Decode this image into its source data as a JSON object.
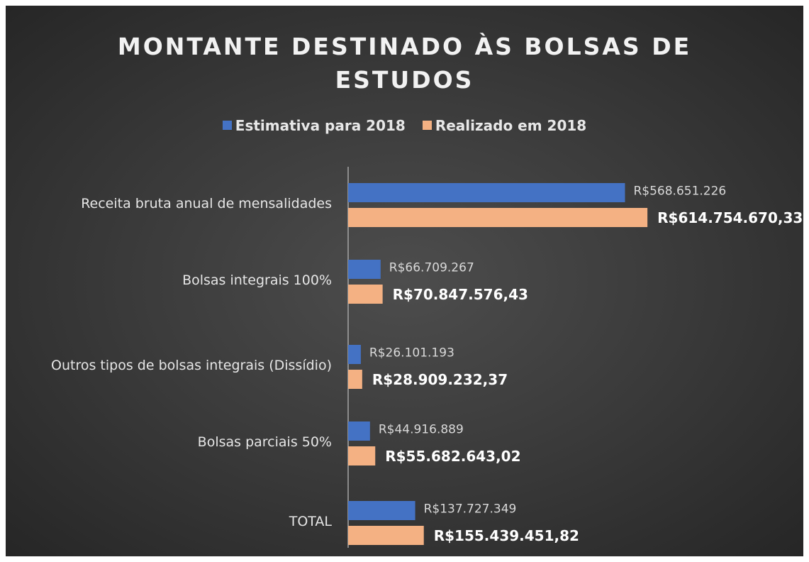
{
  "chart_data": {
    "type": "bar",
    "orientation": "horizontal",
    "title": "MONTANTE DESTINADO ÀS BOLSAS DE ESTUDOS",
    "categories": [
      "Receita bruta anual de mensalidades",
      "Bolsas integrais 100%",
      "Outros tipos de bolsas integrais (Dissídio)",
      "Bolsas parciais 50%",
      "TOTAL"
    ],
    "series": [
      {
        "name": "Estimativa para 2018",
        "color": "#4472c4",
        "values": [
          568651226,
          66709267,
          26101193,
          44916889,
          137727349
        ],
        "value_labels": [
          "R$568.651.226",
          "R$66.709.267",
          "R$26.101.193",
          "R$44.916.889",
          "R$137.727.349"
        ]
      },
      {
        "name": "Realizado em 2018",
        "color": "#f4b183",
        "values": [
          614754670.33,
          70847576.43,
          28909232.37,
          55682643.02,
          155439451.82
        ],
        "value_labels": [
          "R$614.754.670,33",
          "R$70.847.576,43",
          "R$28.909.232,37",
          "R$55.682.643,02",
          "R$155.439.451,82"
        ]
      }
    ],
    "xlim": [
      0,
      900000000
    ],
    "legend": "top",
    "grid": false
  }
}
